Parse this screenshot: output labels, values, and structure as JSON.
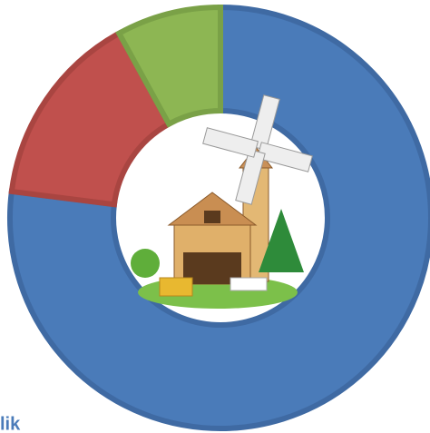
{
  "chart_data": {
    "type": "donut",
    "values": [
      77,
      15,
      8
    ],
    "colors": [
      "#4a7bb9",
      "#c0504d",
      "#8db653"
    ],
    "edge_colors": [
      "#3f6aa3",
      "#a94541",
      "#7aa147"
    ],
    "caption": "lik"
  }
}
